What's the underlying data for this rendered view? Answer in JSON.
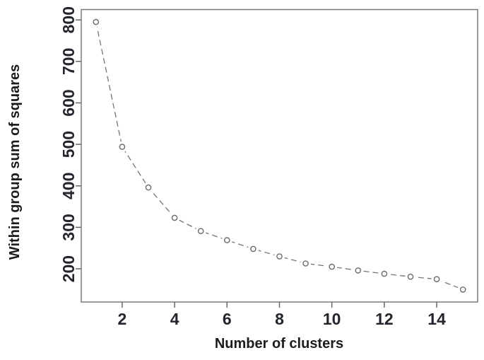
{
  "chart_data": {
    "type": "line",
    "title": "",
    "xlabel": "Number of clusters",
    "ylabel": "Within group sum of squares",
    "x": [
      1,
      2,
      3,
      4,
      5,
      6,
      7,
      8,
      9,
      10,
      11,
      12,
      13,
      14,
      15
    ],
    "values": [
      795,
      494,
      396,
      323,
      291,
      269,
      248,
      230,
      213,
      205,
      196,
      188,
      181,
      175,
      150
    ],
    "x_ticks": [
      "2",
      "4",
      "6",
      "8",
      "10",
      "12",
      "14"
    ],
    "x_tick_values": [
      2,
      4,
      6,
      8,
      10,
      12,
      14
    ],
    "y_ticks": [
      "200",
      "300",
      "400",
      "500",
      "600",
      "700",
      "800"
    ],
    "y_tick_values": [
      200,
      300,
      400,
      500,
      600,
      700,
      800
    ],
    "xlim": [
      0.44,
      15.56
    ],
    "ylim": [
      120,
      825
    ],
    "grid": false,
    "legend": null,
    "marker": "open-circle",
    "line_style": "dashed",
    "colors": {
      "line": "#757575",
      "marker_stroke": "#6b6b6b",
      "marker_fill": "#ffffff",
      "axis": "#7a7a7a",
      "tick": "#666666",
      "text": "#1c1c1c",
      "background": "#ffffff"
    }
  }
}
